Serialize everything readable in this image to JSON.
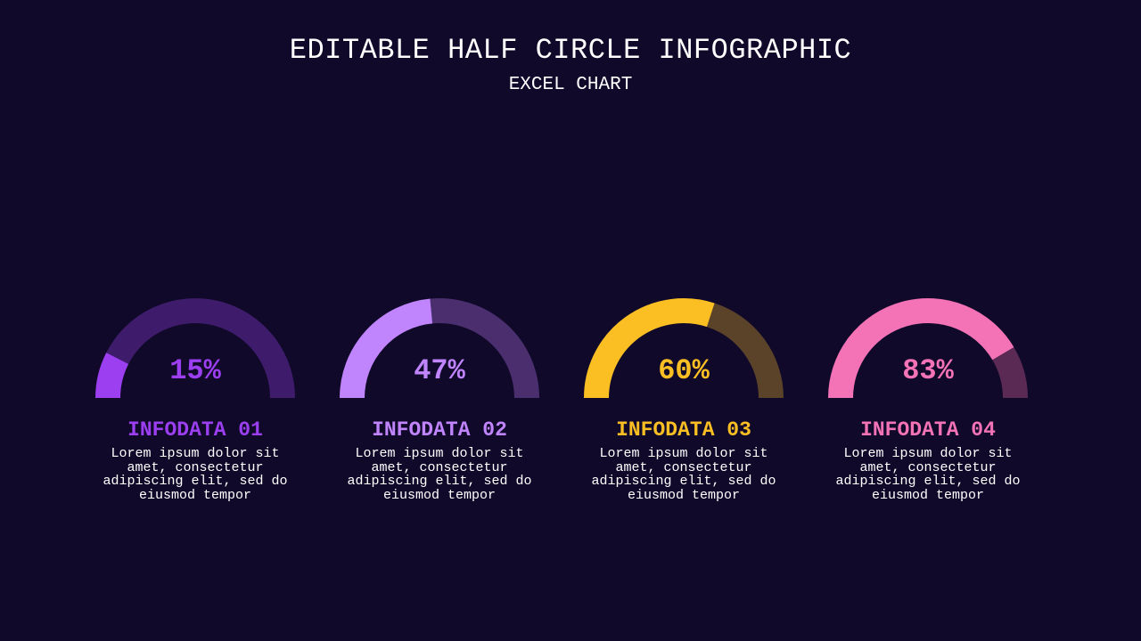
{
  "header": {
    "title": "EDITABLE HALF CIRCLE INFOGRAPHIC",
    "subtitle": "EXCEL CHART"
  },
  "chart_data": {
    "type": "pie",
    "variant": "half-donut",
    "title": "EDITABLE HALF CIRCLE INFOGRAPHIC",
    "subtitle": "EXCEL CHART",
    "gauges": [
      {
        "label": "INFODATA 01",
        "value": 15,
        "value_text": "15%",
        "color": "#9b3ff0",
        "track_color": "#3e1c6b",
        "desc": "Lorem ipsum dolor sit amet, consectetur adipiscing elit, sed do eiusmod tempor"
      },
      {
        "label": "INFODATA 02",
        "value": 47,
        "value_text": "47%",
        "color": "#c084fc",
        "track_color": "#4a2e6e",
        "desc": "Lorem ipsum dolor sit amet, consectetur adipiscing elit, sed do eiusmod tempor"
      },
      {
        "label": "INFODATA 03",
        "value": 60,
        "value_text": "60%",
        "color": "#fbbf24",
        "track_color": "#5a4328",
        "desc": "Lorem ipsum dolor sit amet, consectetur adipiscing elit, sed do eiusmod tempor"
      },
      {
        "label": "INFODATA 04",
        "value": 83,
        "value_text": "83%",
        "color": "#f472b6",
        "track_color": "#5a2a55",
        "desc": "Lorem ipsum dolor sit amet, consectetur adipiscing elit, sed do eiusmod tempor"
      }
    ]
  }
}
